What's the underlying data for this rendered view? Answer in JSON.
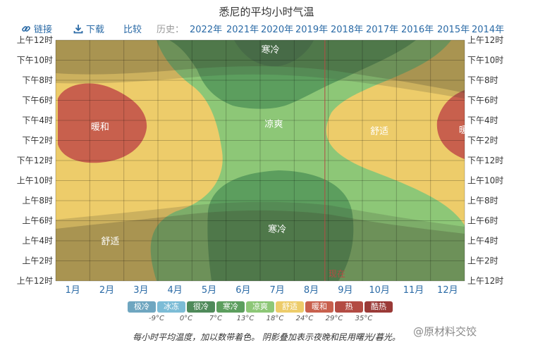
{
  "title": "悉尼的平均小时气温",
  "toolbar": {
    "link_label": "链接",
    "download_label": "下载",
    "compare_label": "比较",
    "history_label": "历史：",
    "years": [
      "2022年",
      "2021年",
      "2020年",
      "2019年",
      "2018年",
      "2017年",
      "2016年",
      "2015年",
      "2014年"
    ]
  },
  "icons": {
    "link": "link-icon",
    "download": "download-icon"
  },
  "chart_data": {
    "type": "heatmap",
    "title": "悉尼的平均小时气温",
    "x_categories": [
      "1月",
      "2月",
      "3月",
      "4月",
      "5月",
      "6月",
      "7月",
      "8月",
      "9月",
      "10月",
      "11月",
      "12月"
    ],
    "y_ticks": [
      "上午12时",
      "上午2时",
      "上午4时",
      "上午6时",
      "上午8时",
      "上午10时",
      "下午12时",
      "下午2时",
      "下午4时",
      "下午6时",
      "下午8时",
      "下午10时",
      "上午12时"
    ],
    "region_labels": [
      {
        "text": "寒冷",
        "month": 6.8,
        "hour": 23.1
      },
      {
        "text": "暖和",
        "month": 1.8,
        "hour": 15.4
      },
      {
        "text": "凉爽",
        "month": 6.9,
        "hour": 15.7
      },
      {
        "text": "舒适",
        "month": 10.0,
        "hour": 15.0
      },
      {
        "text": "暖和",
        "month": 12.6,
        "hour": 15.1
      },
      {
        "text": "舒适",
        "month": 2.1,
        "hour": 4.0
      },
      {
        "text": "寒冷",
        "month": 7.0,
        "hour": 5.2
      }
    ],
    "now_marker": {
      "label": "现在",
      "month": 8.4
    },
    "legend": [
      {
        "label": "极冷",
        "color": "#6fa6c0"
      },
      {
        "label": "冰冻",
        "color": "#7cbcd6"
      },
      {
        "label": "很冷",
        "color": "#4f8a5a"
      },
      {
        "label": "寒冷",
        "color": "#5c9e5e"
      },
      {
        "label": "凉爽",
        "color": "#8dc777"
      },
      {
        "label": "舒适",
        "color": "#edcc6a"
      },
      {
        "label": "暖和",
        "color": "#c8604d"
      },
      {
        "label": "热",
        "color": "#b34b43"
      },
      {
        "label": "酷热",
        "color": "#9a3a37"
      }
    ],
    "legend_thresholds": [
      "-9°C",
      "0°C",
      "7°C",
      "13°C",
      "18°C",
      "24°C",
      "29°C",
      "35°C"
    ]
  },
  "caption": "每小时平均温度，加以数带着色。 阴影叠加表示夜晚和民用曙光/暮光。",
  "watermark": "@原材料交饺"
}
